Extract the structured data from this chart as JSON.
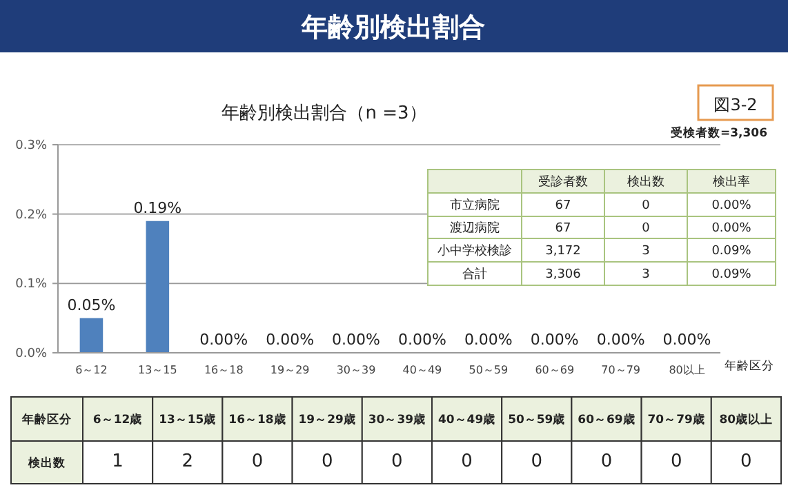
{
  "chart_data": [
    {
      "type": "other",
      "title": "年齢別検出割合"
    },
    {
      "type": "bar",
      "title": "年齢別検出割合（n =3）",
      "xlabel": "年齢区分",
      "annotations": [
        "図3-2",
        "受検者数=3,306"
      ],
      "categories": [
        "6～12",
        "13～15",
        "16～18",
        "19～29",
        "30～39",
        "40～49",
        "50～59",
        "60～69",
        "70～79",
        "80以上"
      ],
      "values": [
        0.05,
        0.19,
        0,
        0,
        0,
        0,
        0,
        0,
        0,
        0
      ],
      "color": "#4f81bd",
      "value_labels": [
        "0.05%",
        "0.19%",
        "0.00%",
        "0.00%",
        "0.00%",
        "0.00%",
        "0.00%",
        "0.00%",
        "0.00%",
        "0.00%"
      ],
      "ylim": [
        0,
        0.3
      ],
      "yticks": [
        {
          "value": 0,
          "label": "0.0%"
        },
        {
          "value": 0.1,
          "label": "0.1%"
        },
        {
          "value": 0.2,
          "label": "0.2%"
        },
        {
          "value": 0.3,
          "label": "0.3%"
        }
      ],
      "grid": "y"
    },
    {
      "type": "other",
      "categories": [
        "受診者数",
        "検出数",
        "検出率"
      ],
      "y_categories": [
        "市立病院",
        "渡辺病院",
        "小中学校検診",
        "合計"
      ],
      "cell_labels": [
        [
          "67",
          "0",
          "0.00%"
        ],
        [
          "67",
          "0",
          "0.00%"
        ],
        [
          "3,172",
          "3",
          "0.09%"
        ],
        [
          "3,306",
          "3",
          "0.09%"
        ]
      ]
    },
    {
      "type": "other",
      "xlabel": "年齢区分",
      "categories": [
        "6～12歳",
        "13～15歳",
        "16～18歳",
        "19～29歳",
        "30～39歳",
        "40～49歳",
        "50～59歳",
        "60～69歳",
        "70～79歳",
        "80歳以上"
      ],
      "y_categories": [
        "検出数"
      ],
      "cell_labels": [
        [
          "1",
          "2",
          "0",
          "0",
          "0",
          "0",
          "0",
          "0",
          "0",
          "0"
        ]
      ]
    }
  ]
}
